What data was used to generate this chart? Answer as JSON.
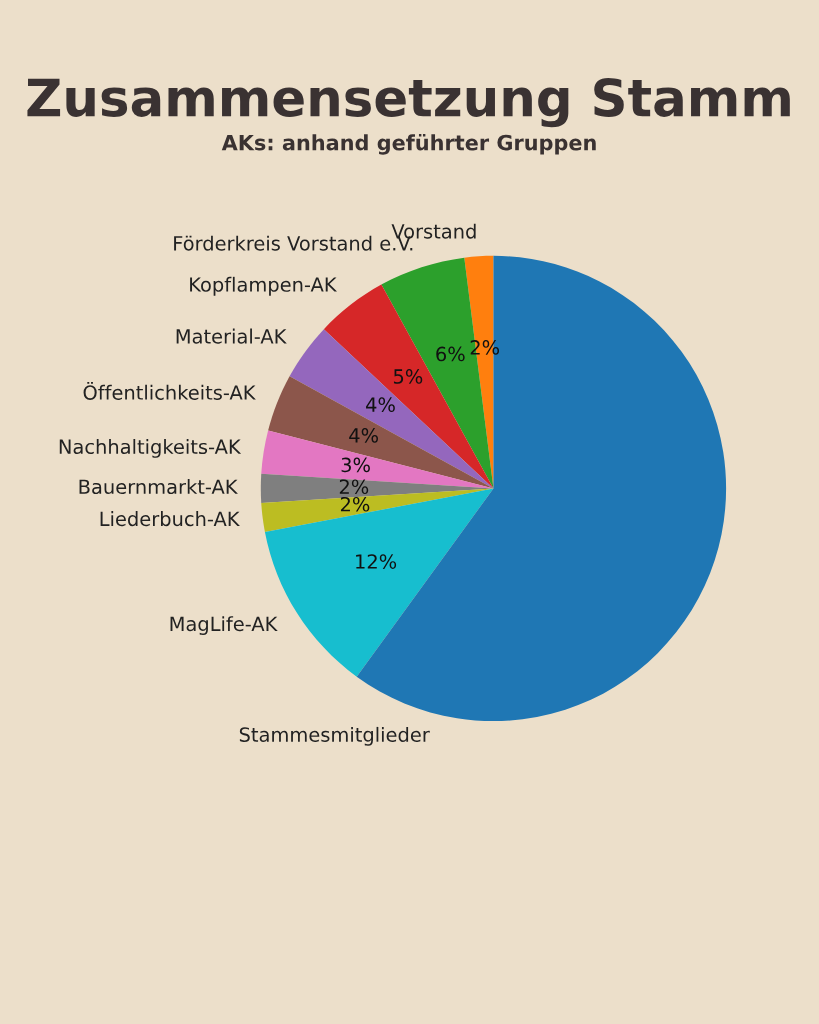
{
  "chart_data": {
    "type": "pie",
    "title": "Zusammensetzung Stamm",
    "subtitle": "AKs: anhand geführter Gruppen",
    "categories": [
      "Vorstand",
      "Förderkreis Vorstand e.V.",
      "Kopflampen-AK",
      "Material-AK",
      "Öffentlichkeits-AK",
      "Nachhaltigkeits-AK",
      "Bauernmarkt-AK",
      "Liederbuch-AK",
      "MagLife-AK",
      "Stammesmitglieder"
    ],
    "values": [
      2,
      6,
      5,
      4,
      4,
      3,
      2,
      2,
      12,
      60
    ],
    "colors": [
      "#ff7f0e",
      "#2ca02c",
      "#d62728",
      "#9467bd",
      "#8c564b",
      "#e377c2",
      "#7f7f7f",
      "#bcbd22",
      "#17becf",
      "#1f77b4"
    ],
    "value_labels": [
      "2%",
      "6%",
      "5%",
      "4%",
      "4%",
      "3%",
      "2%",
      "2%",
      "12%",
      null
    ]
  }
}
